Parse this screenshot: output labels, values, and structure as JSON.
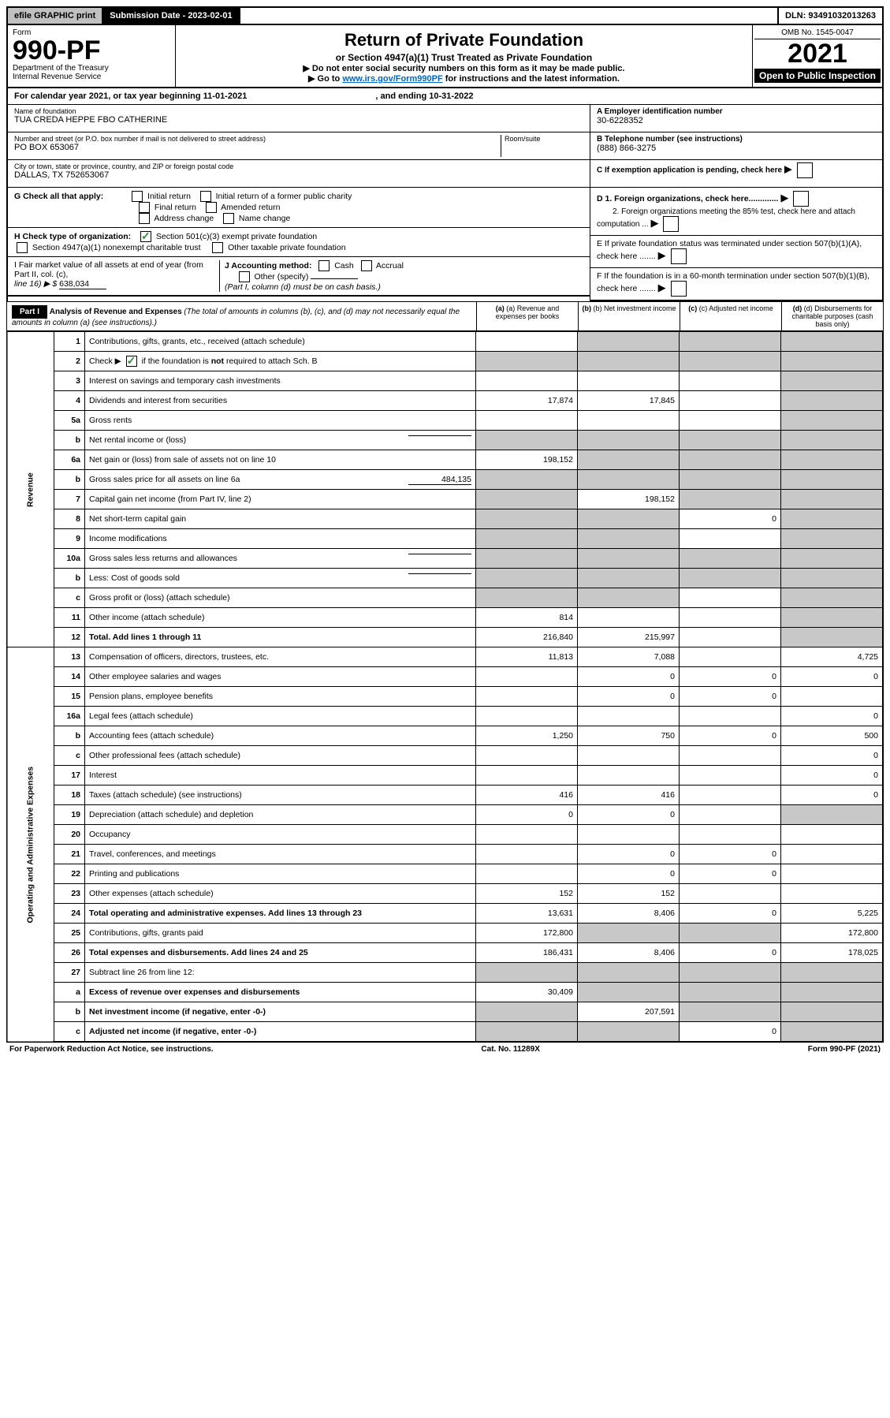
{
  "topbar": {
    "efile": "efile GRAPHIC print",
    "submission_label": "Submission Date - 2023-02-01",
    "dln_label": "DLN: 93491032013263"
  },
  "header": {
    "form_label": "Form",
    "form_number": "990-PF",
    "dept1": "Department of the Treasury",
    "dept2": "Internal Revenue Service",
    "title": "Return of Private Foundation",
    "subtitle": "or Section 4947(a)(1) Trust Treated as Private Foundation",
    "note1": "▶ Do not enter social security numbers on this form as it may be made public.",
    "note2_pre": "▶ Go to ",
    "note2_link": "www.irs.gov/Form990PF",
    "note2_post": " for instructions and the latest information.",
    "omb": "OMB No. 1545-0047",
    "year": "2021",
    "open": "Open to Public Inspection"
  },
  "calendar": {
    "text_pre": "For calendar year 2021, or tax year beginning ",
    "begin": "11-01-2021",
    "text_mid": " , and ending ",
    "end": "10-31-2022"
  },
  "info": {
    "name_label": "Name of foundation",
    "name": "TUA CREDA HEPPE FBO CATHERINE",
    "addr_label": "Number and street (or P.O. box number if mail is not delivered to street address)",
    "addr": "PO BOX 653067",
    "room_label": "Room/suite",
    "city_label": "City or town, state or province, country, and ZIP or foreign postal code",
    "city": "DALLAS, TX  752653067",
    "ein_label": "A Employer identification number",
    "ein": "30-6228352",
    "phone_label": "B Telephone number (see instructions)",
    "phone": "(888) 866-3275",
    "c_label": "C If exemption application is pending, check here",
    "d1": "D 1. Foreign organizations, check here.............",
    "d2": "2. Foreign organizations meeting the 85% test, check here and attach computation ...",
    "e": "E  If private foundation status was terminated under section 507(b)(1)(A), check here .......",
    "f": "F  If the foundation is in a 60-month termination under section 507(b)(1)(B), check here .......",
    "g_label": "G Check all that apply:",
    "g_opts": [
      "Initial return",
      "Initial return of a former public charity",
      "Final return",
      "Amended return",
      "Address change",
      "Name change"
    ],
    "h_label": "H Check type of organization:",
    "h_opts": [
      "Section 501(c)(3) exempt private foundation",
      "Section 4947(a)(1) nonexempt charitable trust",
      "Other taxable private foundation"
    ],
    "i_label": "I Fair market value of all assets at end of year (from Part II, col. (c),",
    "i_line": "line 16) ▶ $",
    "i_val": "638,034",
    "j_label": "J Accounting method:",
    "j_opts": [
      "Cash",
      "Accrual",
      "Other (specify)"
    ],
    "j_note": "(Part I, column (d) must be on cash basis.)"
  },
  "part1": {
    "label": "Part I",
    "title": "Analysis of Revenue and Expenses",
    "title_note": "(The total of amounts in columns (b), (c), and (d) may not necessarily equal the amounts in column (a) (see instructions).)",
    "col_a": "(a) Revenue and expenses per books",
    "col_b": "(b) Net investment income",
    "col_c": "(c) Adjusted net income",
    "col_d": "(d) Disbursements for charitable purposes (cash basis only)"
  },
  "sides": {
    "revenue": "Revenue",
    "expenses": "Operating and Administrative Expenses"
  },
  "rows": [
    {
      "n": "1",
      "desc": "Contributions, gifts, grants, etc., received (attach schedule)",
      "a": "",
      "b": "shade",
      "c": "shade",
      "d": "shade"
    },
    {
      "n": "2",
      "desc": "Check ▶ ✓ if the foundation is not required to attach Sch. B",
      "a": "shade",
      "b": "shade",
      "c": "shade",
      "d": "shade",
      "checked": true
    },
    {
      "n": "3",
      "desc": "Interest on savings and temporary cash investments",
      "a": "",
      "b": "",
      "c": "",
      "d": "shade"
    },
    {
      "n": "4",
      "desc": "Dividends and interest from securities",
      "a": "17,874",
      "b": "17,845",
      "c": "",
      "d": "shade"
    },
    {
      "n": "5a",
      "desc": "Gross rents",
      "a": "",
      "b": "",
      "c": "",
      "d": "shade"
    },
    {
      "n": "b",
      "desc": "Net rental income or (loss)",
      "a": "shade",
      "b": "shade",
      "c": "shade",
      "d": "shade",
      "inline": ""
    },
    {
      "n": "6a",
      "desc": "Net gain or (loss) from sale of assets not on line 10",
      "a": "198,152",
      "b": "shade",
      "c": "shade",
      "d": "shade"
    },
    {
      "n": "b",
      "desc": "Gross sales price for all assets on line 6a",
      "a": "shade",
      "b": "shade",
      "c": "shade",
      "d": "shade",
      "inline": "484,135"
    },
    {
      "n": "7",
      "desc": "Capital gain net income (from Part IV, line 2)",
      "a": "shade",
      "b": "198,152",
      "c": "shade",
      "d": "shade"
    },
    {
      "n": "8",
      "desc": "Net short-term capital gain",
      "a": "shade",
      "b": "shade",
      "c": "0",
      "d": "shade"
    },
    {
      "n": "9",
      "desc": "Income modifications",
      "a": "shade",
      "b": "shade",
      "c": "",
      "d": "shade"
    },
    {
      "n": "10a",
      "desc": "Gross sales less returns and allowances",
      "a": "shade",
      "b": "shade",
      "c": "shade",
      "d": "shade",
      "inline": ""
    },
    {
      "n": "b",
      "desc": "Less: Cost of goods sold",
      "a": "shade",
      "b": "shade",
      "c": "shade",
      "d": "shade",
      "inline": ""
    },
    {
      "n": "c",
      "desc": "Gross profit or (loss) (attach schedule)",
      "a": "shade",
      "b": "shade",
      "c": "",
      "d": "shade"
    },
    {
      "n": "11",
      "desc": "Other income (attach schedule)",
      "a": "814",
      "b": "",
      "c": "",
      "d": "shade"
    },
    {
      "n": "12",
      "desc": "Total. Add lines 1 through 11",
      "a": "216,840",
      "b": "215,997",
      "c": "",
      "d": "shade",
      "bold": true
    },
    {
      "n": "13",
      "desc": "Compensation of officers, directors, trustees, etc.",
      "a": "11,813",
      "b": "7,088",
      "c": "",
      "d": "4,725"
    },
    {
      "n": "14",
      "desc": "Other employee salaries and wages",
      "a": "",
      "b": "0",
      "c": "0",
      "d": "0"
    },
    {
      "n": "15",
      "desc": "Pension plans, employee benefits",
      "a": "",
      "b": "0",
      "c": "0",
      "d": ""
    },
    {
      "n": "16a",
      "desc": "Legal fees (attach schedule)",
      "a": "",
      "b": "",
      "c": "",
      "d": "0"
    },
    {
      "n": "b",
      "desc": "Accounting fees (attach schedule)",
      "a": "1,250",
      "b": "750",
      "c": "0",
      "d": "500"
    },
    {
      "n": "c",
      "desc": "Other professional fees (attach schedule)",
      "a": "",
      "b": "",
      "c": "",
      "d": "0"
    },
    {
      "n": "17",
      "desc": "Interest",
      "a": "",
      "b": "",
      "c": "",
      "d": "0"
    },
    {
      "n": "18",
      "desc": "Taxes (attach schedule) (see instructions)",
      "a": "416",
      "b": "416",
      "c": "",
      "d": "0"
    },
    {
      "n": "19",
      "desc": "Depreciation (attach schedule) and depletion",
      "a": "0",
      "b": "0",
      "c": "",
      "d": "shade"
    },
    {
      "n": "20",
      "desc": "Occupancy",
      "a": "",
      "b": "",
      "c": "",
      "d": ""
    },
    {
      "n": "21",
      "desc": "Travel, conferences, and meetings",
      "a": "",
      "b": "0",
      "c": "0",
      "d": ""
    },
    {
      "n": "22",
      "desc": "Printing and publications",
      "a": "",
      "b": "0",
      "c": "0",
      "d": ""
    },
    {
      "n": "23",
      "desc": "Other expenses (attach schedule)",
      "a": "152",
      "b": "152",
      "c": "",
      "d": ""
    },
    {
      "n": "24",
      "desc": "Total operating and administrative expenses. Add lines 13 through 23",
      "a": "13,631",
      "b": "8,406",
      "c": "0",
      "d": "5,225",
      "bold": true
    },
    {
      "n": "25",
      "desc": "Contributions, gifts, grants paid",
      "a": "172,800",
      "b": "shade",
      "c": "shade",
      "d": "172,800"
    },
    {
      "n": "26",
      "desc": "Total expenses and disbursements. Add lines 24 and 25",
      "a": "186,431",
      "b": "8,406",
      "c": "0",
      "d": "178,025",
      "bold": true
    },
    {
      "n": "27",
      "desc": "Subtract line 26 from line 12:",
      "a": "shade",
      "b": "shade",
      "c": "shade",
      "d": "shade"
    },
    {
      "n": "a",
      "desc": "Excess of revenue over expenses and disbursements",
      "a": "30,409",
      "b": "shade",
      "c": "shade",
      "d": "shade",
      "bold": true
    },
    {
      "n": "b",
      "desc": "Net investment income (if negative, enter -0-)",
      "a": "shade",
      "b": "207,591",
      "c": "shade",
      "d": "shade",
      "bold": true
    },
    {
      "n": "c",
      "desc": "Adjusted net income (if negative, enter -0-)",
      "a": "shade",
      "b": "shade",
      "c": "0",
      "d": "shade",
      "bold": true
    }
  ],
  "footer": {
    "left": "For Paperwork Reduction Act Notice, see instructions.",
    "mid": "Cat. No. 11289X",
    "right": "Form 990-PF (2021)"
  }
}
